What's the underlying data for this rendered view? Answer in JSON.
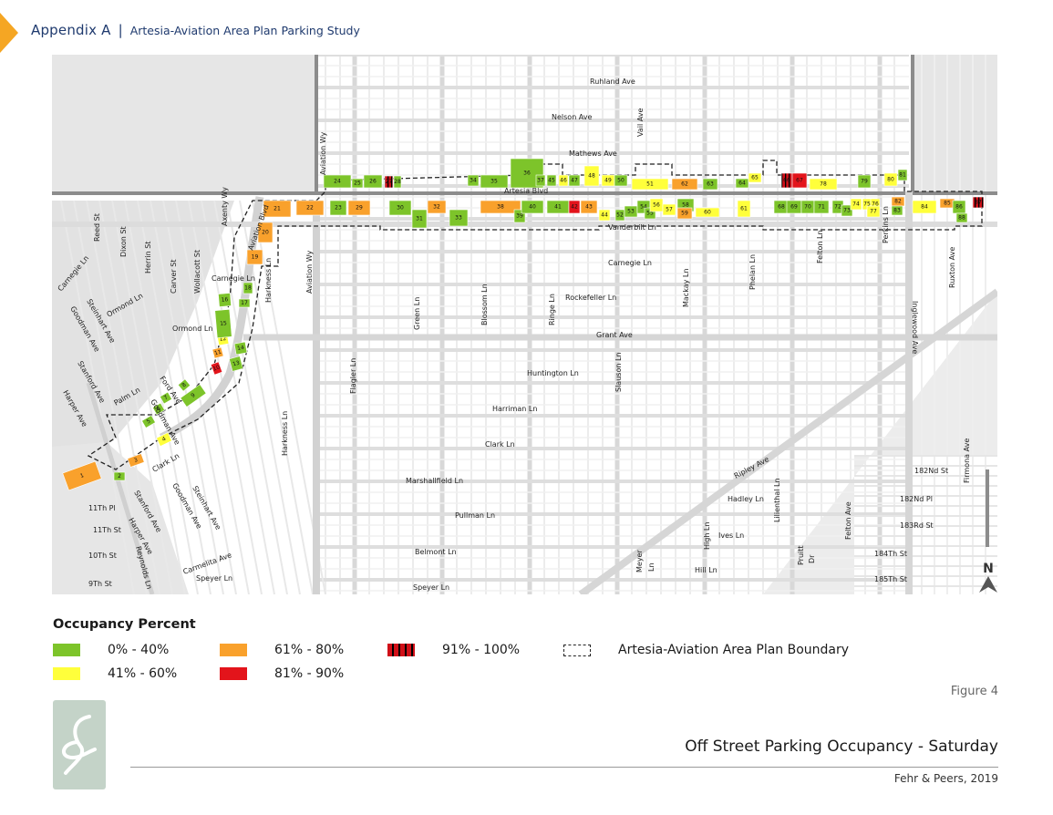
{
  "header": {
    "main": "Appendix A",
    "separator": "|",
    "subtitle": "Artesia-Aviation Area Plan Parking Study"
  },
  "map": {
    "north_label": "N",
    "street_labels": [
      {
        "text": "Ruhland Ave",
        "rot": 0
      },
      {
        "text": "Nelson Ave",
        "rot": 0
      },
      {
        "text": "Mathews Ave",
        "rot": 0
      },
      {
        "text": "Vail Ave",
        "rot": -90
      },
      {
        "text": "Aviation Wy",
        "rot": -90
      },
      {
        "text": "Artesia Blvd",
        "rot": 0
      },
      {
        "text": "Vanderbilt Ln",
        "rot": 0
      },
      {
        "text": "Carnegie Ln",
        "rot": 0
      },
      {
        "text": "Rockefeller Ln",
        "rot": 0
      },
      {
        "text": "Grant Ave",
        "rot": 0
      },
      {
        "text": "Huntington Ln",
        "rot": 0
      },
      {
        "text": "Harriman Ln",
        "rot": 0
      },
      {
        "text": "Clark Ln",
        "rot": 0
      },
      {
        "text": "Marshallfield Ln",
        "rot": 0
      },
      {
        "text": "Pullman Ln",
        "rot": 0
      },
      {
        "text": "Belmont Ln",
        "rot": 0
      },
      {
        "text": "Speyer Ln",
        "rot": 0
      },
      {
        "text": "Speyer Ln",
        "rot": 0
      },
      {
        "text": "Green Ln",
        "rot": -90
      },
      {
        "text": "Blossom Ln",
        "rot": -90
      },
      {
        "text": "Ringe Ln",
        "rot": -90
      },
      {
        "text": "Slauson Ln",
        "rot": -90
      },
      {
        "text": "Mackay Ln",
        "rot": -90
      },
      {
        "text": "Phelan Ln",
        "rot": -90
      },
      {
        "text": "Felton Ln",
        "rot": -90
      },
      {
        "text": "Perkins Ln",
        "rot": -90
      },
      {
        "text": "Inglewood Ave",
        "rot": 90
      },
      {
        "text": "Ruxton Ave",
        "rot": -90
      },
      {
        "text": "Flagler Ln",
        "rot": -90
      },
      {
        "text": "Harkness Ln",
        "rot": -90
      },
      {
        "text": "Harkness Ln",
        "rot": -90
      },
      {
        "text": "Aviation Wy",
        "rot": -90
      },
      {
        "text": "Aviation Blvd",
        "rot": -70
      },
      {
        "text": "Axenty Wy",
        "rot": -90
      },
      {
        "text": "Carnegie Ln",
        "rot": 0
      },
      {
        "text": "Ormond Ln",
        "rot": 0
      },
      {
        "text": "Ford Ave",
        "rot": 55
      },
      {
        "text": "Reed St",
        "rot": -90
      },
      {
        "text": "Dixon St",
        "rot": -90
      },
      {
        "text": "Herrin St",
        "rot": -90
      },
      {
        "text": "Carver St",
        "rot": -90
      },
      {
        "text": "Wollacott St",
        "rot": -90
      },
      {
        "text": "Carnegie Ln",
        "rot": -50
      },
      {
        "text": "Steinhart Ave",
        "rot": 60
      },
      {
        "text": "Goodman Ave",
        "rot": 60
      },
      {
        "text": "Ormond Ln",
        "rot": -30
      },
      {
        "text": "Stanford Ave",
        "rot": 60
      },
      {
        "text": "Harper Ave",
        "rot": 60
      },
      {
        "text": "Palm Ln",
        "rot": -30
      },
      {
        "text": "Goodman Ave",
        "rot": 60
      },
      {
        "text": "Clark Ln",
        "rot": -30
      },
      {
        "text": "Stanford Ave",
        "rot": 60
      },
      {
        "text": "Goodman Ave",
        "rot": 60
      },
      {
        "text": "Steinhart Ave",
        "rot": 60
      },
      {
        "text": "Harper Ave",
        "rot": 60
      },
      {
        "text": "Reynolds Ln",
        "rot": 75
      },
      {
        "text": "11Th Pl",
        "rot": 0
      },
      {
        "text": "11Th St",
        "rot": 0
      },
      {
        "text": "10Th St",
        "rot": 0
      },
      {
        "text": "9Th St",
        "rot": 0
      },
      {
        "text": "Carmelita Ave",
        "rot": -20
      },
      {
        "text": "Ripley Ave",
        "rot": -28
      },
      {
        "text": "Hadley Ln",
        "rot": 0
      },
      {
        "text": "Ives Ln",
        "rot": 0
      },
      {
        "text": "High Ln",
        "rot": -90
      },
      {
        "text": "Hill Ln",
        "rot": 0
      },
      {
        "text": "Lilienthal Ln",
        "rot": -90
      },
      {
        "text": "Pruitt",
        "rot": -90
      },
      {
        "text": "Dr",
        "rot": -90
      },
      {
        "text": "Meyer",
        "rot": -90
      },
      {
        "text": "Ln",
        "rot": -90
      },
      {
        "text": "Felton Ave",
        "rot": -90
      },
      {
        "text": "182Nd St",
        "rot": 0
      },
      {
        "text": "182Nd Pl",
        "rot": 0
      },
      {
        "text": "183Rd St",
        "rot": 0
      },
      {
        "text": "184Th St",
        "rot": 0
      },
      {
        "text": "185Th St",
        "rot": 0
      },
      {
        "text": "Firmona Ave",
        "rot": -90
      }
    ],
    "lots": [
      {
        "num": "1",
        "occ": "61-80"
      },
      {
        "num": "2",
        "occ": "0-40"
      },
      {
        "num": "3",
        "occ": "61-80"
      },
      {
        "num": "4",
        "occ": "41-60"
      },
      {
        "num": "5",
        "occ": "0-40"
      },
      {
        "num": "6",
        "occ": "0-40"
      },
      {
        "num": "7",
        "occ": "0-40"
      },
      {
        "num": "8",
        "occ": "0-40"
      },
      {
        "num": "9",
        "occ": "0-40"
      },
      {
        "num": "10",
        "occ": "81-90"
      },
      {
        "num": "11",
        "occ": "61-80"
      },
      {
        "num": "12",
        "occ": "41-60"
      },
      {
        "num": "13",
        "occ": "0-40"
      },
      {
        "num": "14",
        "occ": "0-40"
      },
      {
        "num": "15",
        "occ": "0-40"
      },
      {
        "num": "16",
        "occ": "0-40"
      },
      {
        "num": "17",
        "occ": "0-40"
      },
      {
        "num": "18",
        "occ": "0-40"
      },
      {
        "num": "19",
        "occ": "61-80"
      },
      {
        "num": "20",
        "occ": "61-80"
      },
      {
        "num": "21",
        "occ": "61-80"
      },
      {
        "num": "22",
        "occ": "61-80"
      },
      {
        "num": "23",
        "occ": "0-40"
      },
      {
        "num": "24",
        "occ": "0-40"
      },
      {
        "num": "25",
        "occ": "0-40"
      },
      {
        "num": "26",
        "occ": "0-40"
      },
      {
        "num": "27",
        "occ": "91-100"
      },
      {
        "num": "28",
        "occ": "0-40"
      },
      {
        "num": "29",
        "occ": "61-80"
      },
      {
        "num": "30",
        "occ": "0-40"
      },
      {
        "num": "31",
        "occ": "0-40"
      },
      {
        "num": "32",
        "occ": "61-80"
      },
      {
        "num": "33",
        "occ": "0-40"
      },
      {
        "num": "34",
        "occ": "0-40"
      },
      {
        "num": "35",
        "occ": "0-40"
      },
      {
        "num": "36",
        "occ": "0-40"
      },
      {
        "num": "37",
        "occ": "0-40"
      },
      {
        "num": "38",
        "occ": "61-80"
      },
      {
        "num": "39",
        "occ": "0-40"
      },
      {
        "num": "40",
        "occ": "0-40"
      },
      {
        "num": "41",
        "occ": "0-40"
      },
      {
        "num": "42",
        "occ": "81-90"
      },
      {
        "num": "43",
        "occ": "61-80"
      },
      {
        "num": "44",
        "occ": "41-60"
      },
      {
        "num": "45",
        "occ": "0-40"
      },
      {
        "num": "46",
        "occ": "41-60"
      },
      {
        "num": "47",
        "occ": "0-40"
      },
      {
        "num": "48",
        "occ": "41-60"
      },
      {
        "num": "49",
        "occ": "41-60"
      },
      {
        "num": "50",
        "occ": "0-40"
      },
      {
        "num": "51",
        "occ": "41-60"
      },
      {
        "num": "52",
        "occ": "0-40"
      },
      {
        "num": "53",
        "occ": "0-40"
      },
      {
        "num": "54",
        "occ": "0-40"
      },
      {
        "num": "55",
        "occ": "0-40"
      },
      {
        "num": "56",
        "occ": "41-60"
      },
      {
        "num": "57",
        "occ": "41-60"
      },
      {
        "num": "58",
        "occ": "0-40"
      },
      {
        "num": "59",
        "occ": "61-80"
      },
      {
        "num": "60",
        "occ": "41-60"
      },
      {
        "num": "61",
        "occ": "41-60"
      },
      {
        "num": "62",
        "occ": "61-80"
      },
      {
        "num": "63",
        "occ": "0-40"
      },
      {
        "num": "64",
        "occ": "0-40"
      },
      {
        "num": "65",
        "occ": "41-60"
      },
      {
        "num": "66",
        "occ": "91-100"
      },
      {
        "num": "67",
        "occ": "81-90"
      },
      {
        "num": "68",
        "occ": "0-40"
      },
      {
        "num": "69",
        "occ": "0-40"
      },
      {
        "num": "70",
        "occ": "0-40"
      },
      {
        "num": "71",
        "occ": "0-40"
      },
      {
        "num": "72",
        "occ": "0-40"
      },
      {
        "num": "73",
        "occ": "0-40"
      },
      {
        "num": "74",
        "occ": "41-60"
      },
      {
        "num": "75",
        "occ": "41-60"
      },
      {
        "num": "76",
        "occ": "41-60"
      },
      {
        "num": "77",
        "occ": "41-60"
      },
      {
        "num": "78",
        "occ": "41-60"
      },
      {
        "num": "79",
        "occ": "0-40"
      },
      {
        "num": "80",
        "occ": "41-60"
      },
      {
        "num": "81",
        "occ": "0-40"
      },
      {
        "num": "82",
        "occ": "61-80"
      },
      {
        "num": "83",
        "occ": "0-40"
      },
      {
        "num": "84",
        "occ": "41-60"
      },
      {
        "num": "85",
        "occ": "61-80"
      },
      {
        "num": "86",
        "occ": "0-40"
      },
      {
        "num": "87",
        "occ": "91-100"
      },
      {
        "num": "88",
        "occ": "0-40"
      }
    ]
  },
  "legend": {
    "title": "Occupancy Percent",
    "items": [
      {
        "label": "0% - 40%",
        "color": "#7dc42a"
      },
      {
        "label": "41% - 60%",
        "color": "#ffff3b"
      },
      {
        "label": "61% - 80%",
        "color": "#f9a12c"
      },
      {
        "label": "81% - 90%",
        "color": "#e3141b"
      },
      {
        "label": "91% - 100%",
        "pattern": "red-black-hatch"
      },
      {
        "label": "Artesia-Aviation Area Plan Boundary",
        "pattern": "dashed-outline"
      }
    ]
  },
  "figure": {
    "number": "Figure 4",
    "title": "Off Street Parking Occupancy - Saturday",
    "credit": "Fehr & Peers, 2019"
  },
  "colors": {
    "accent": "#f5a623",
    "header": "#1f3a6e",
    "occ_0_40": "#7dc42a",
    "occ_41_60": "#ffff3b",
    "occ_61_80": "#f9a12c",
    "occ_81_90": "#e3141b",
    "occ_91_100": "#d01018",
    "logo_bg": "#c4d3c8"
  },
  "icons": {
    "north_arrow": "north-arrow-icon",
    "logo": "fehr-peers-logo"
  }
}
